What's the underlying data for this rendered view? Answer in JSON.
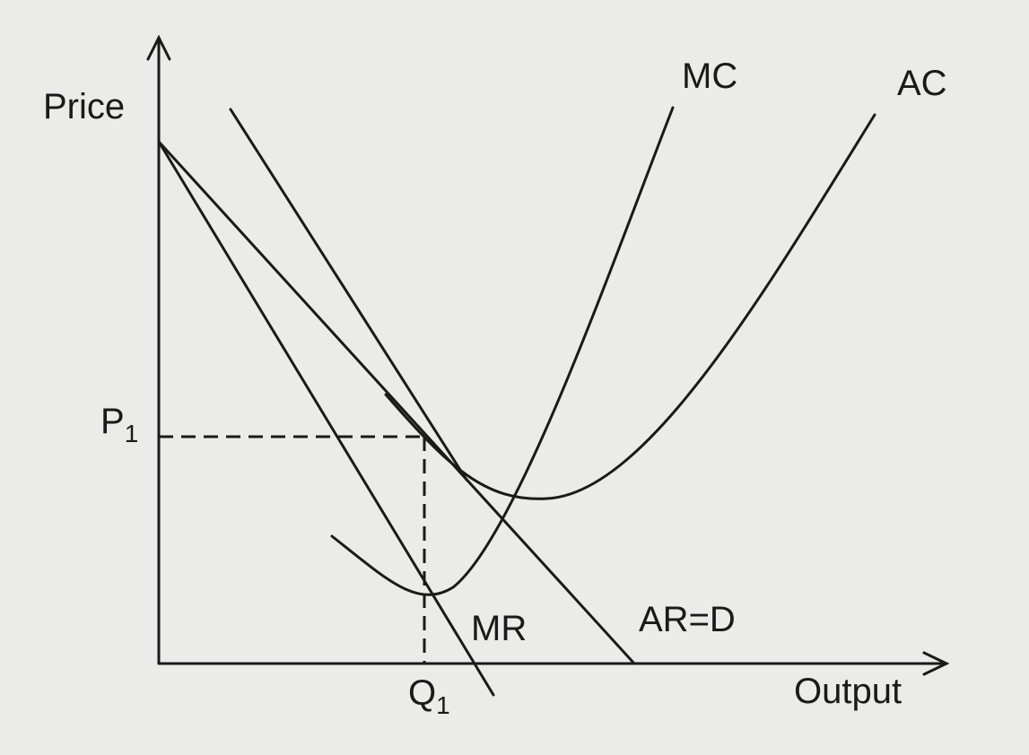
{
  "axes": {
    "y_label": "Price",
    "x_label": "Output"
  },
  "curves": {
    "mc": "MC",
    "ac": "AC",
    "mr": "MR",
    "ar": "AR=D"
  },
  "markers": {
    "price": {
      "text": "P",
      "subscript": "1"
    },
    "quantity": {
      "text": "Q",
      "subscript": "1"
    }
  }
}
